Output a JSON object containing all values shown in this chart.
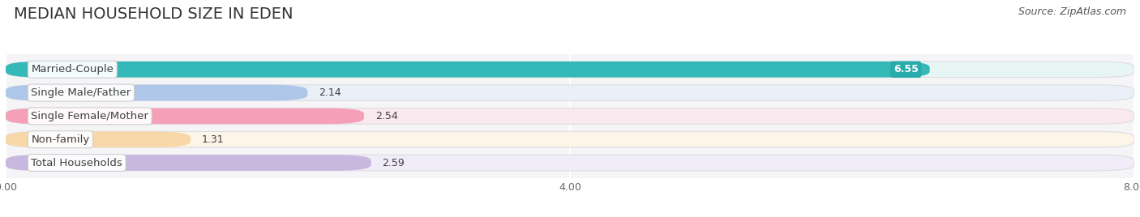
{
  "title": "MEDIAN HOUSEHOLD SIZE IN EDEN",
  "source": "Source: ZipAtlas.com",
  "categories": [
    "Married-Couple",
    "Single Male/Father",
    "Single Female/Mother",
    "Non-family",
    "Total Households"
  ],
  "values": [
    6.55,
    2.14,
    2.54,
    1.31,
    2.59
  ],
  "bar_colors": [
    "#35b8b8",
    "#aec6e8",
    "#f5a0b8",
    "#f8d8a8",
    "#c8b8e0"
  ],
  "bar_bg_colors": [
    "#e8f5f5",
    "#eaf0f8",
    "#faeaf0",
    "#fdf5e8",
    "#f0ecf8"
  ],
  "value_pill_colors": [
    "#2aabab",
    "#8aaad0",
    "#e888a0",
    "#e8b870",
    "#a890c8"
  ],
  "xlim": [
    0,
    8.0
  ],
  "xticks": [
    0.0,
    4.0,
    8.0
  ],
  "bg_color": "#ffffff",
  "plot_bg_color": "#f5f5f8",
  "bar_border_color": "#dddddd",
  "title_fontsize": 14,
  "label_fontsize": 9.5,
  "value_fontsize": 9,
  "source_fontsize": 9
}
